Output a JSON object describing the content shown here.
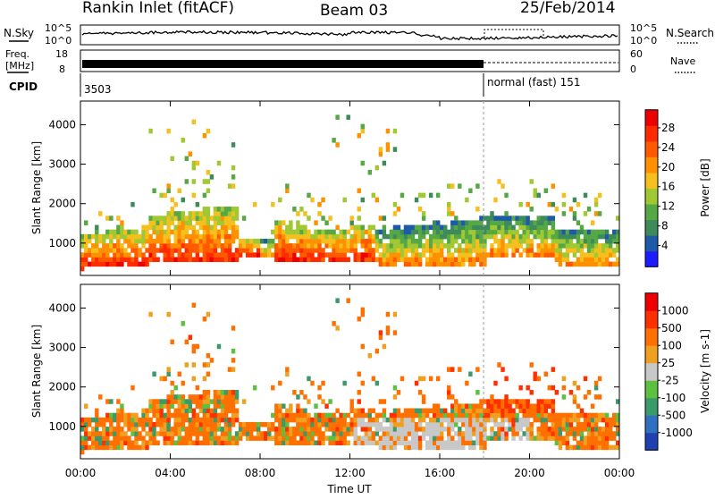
{
  "header": {
    "title": "Rankin Inlet (fitACF)",
    "beam": "Beam 03",
    "date": "25/Feb/2014"
  },
  "panels": {
    "nsky": {
      "left_label": "N.Sky",
      "right_label": "N.Search",
      "left_ticks": [
        "10^5",
        "10^0"
      ],
      "right_ticks": [
        "10^5",
        "10^0"
      ]
    },
    "freq": {
      "left_label_1": "Freq.",
      "left_label_2": "[MHz]",
      "right_label": "Nave",
      "left_ticks": [
        "18",
        "8"
      ],
      "right_ticks": [
        "60",
        "0"
      ]
    },
    "cpid": {
      "label": "CPID",
      "mode1": "3503",
      "mode2": "normal (fast) 151"
    }
  },
  "chart_data": [
    {
      "type": "heatmap",
      "name": "power",
      "ylabel": "Slant Range [km]",
      "xlabel": "Time UT",
      "x_ticks": [
        "00:00",
        "04:00",
        "08:00",
        "12:00",
        "16:00",
        "20:00",
        "00:00"
      ],
      "y_ticks": [
        1000,
        2000,
        3000,
        4000
      ],
      "ylim": [
        180,
        4600
      ],
      "colorbar": {
        "label": "Power [dB]",
        "ticks": [
          "4",
          "8",
          "12",
          "16",
          "20",
          "24",
          "28"
        ],
        "colors": [
          "#1c1cff",
          "#1e5aa8",
          "#3d8a5a",
          "#56a845",
          "#a0c832",
          "#f5c01e",
          "#ff9000",
          "#ff5a00",
          "#ff2a00",
          "#ee0000"
        ]
      }
    },
    {
      "type": "heatmap",
      "name": "velocity",
      "ylabel": "Slant Range [km]",
      "xlabel": "Time UT",
      "x_ticks": [
        "00:00",
        "04:00",
        "08:00",
        "12:00",
        "16:00",
        "20:00",
        "00:00"
      ],
      "y_ticks": [
        1000,
        2000,
        3000,
        4000
      ],
      "ylim": [
        180,
        4600
      ],
      "colorbar": {
        "label": "Velocity [m s-1]",
        "ticks": [
          "1000",
          "500",
          "100",
          "25",
          "-25",
          "-100",
          "-500",
          "-1000"
        ],
        "colors": [
          "#2040b0",
          "#3070c0",
          "#3a9a6a",
          "#5cc040",
          "#c8c8c8",
          "#f0a020",
          "#ff7000",
          "#ff3000",
          "#ee0000"
        ]
      }
    }
  ],
  "axis": {
    "time_label": "Time UT",
    "x_ticks": [
      "00:00",
      "04:00",
      "08:00",
      "12:00",
      "16:00",
      "20:00",
      "00:00"
    ]
  }
}
